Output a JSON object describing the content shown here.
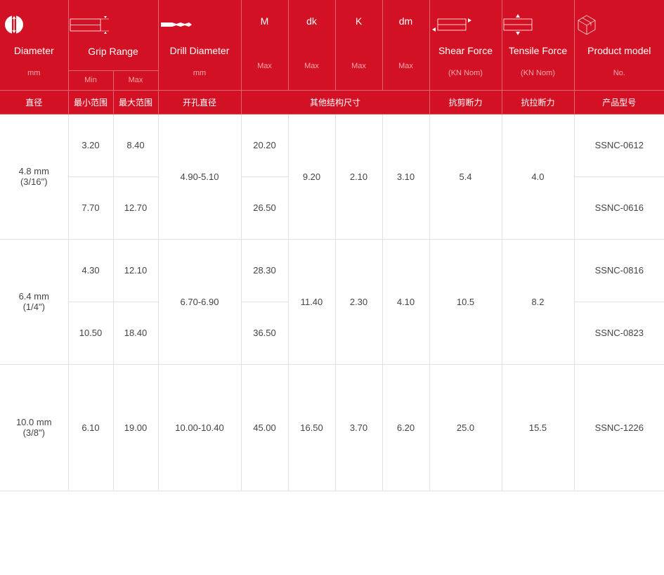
{
  "colors": {
    "header_bg": "#d21224",
    "border": "#e2e2e2"
  },
  "header": {
    "diameter": {
      "title": "Diameter",
      "unit": "mm",
      "cn": "直径",
      "icon": "diameter-icon"
    },
    "grip": {
      "title": "Grip Range",
      "min": "Min",
      "max": "Max",
      "cn_min": "最小范围",
      "cn_max": "最大范围",
      "icon": "grip-range-icon"
    },
    "drill": {
      "title": "Drill Diameter",
      "unit": "mm",
      "cn": "开孔直径",
      "icon": "drill-icon"
    },
    "m": {
      "title": "M",
      "unit": "Max"
    },
    "dk": {
      "title": "dk",
      "unit": "Max"
    },
    "k": {
      "title": "K",
      "unit": "Max"
    },
    "dm": {
      "title": "dm",
      "unit": "Max"
    },
    "other_cn": "其他结构尺寸",
    "shear": {
      "title": "Shear Force",
      "unit": "(KN Nom)",
      "cn": "抗剪断力",
      "icon": "shear-force-icon"
    },
    "tensile": {
      "title": "Tensile Force",
      "unit": "(KN Nom)",
      "cn": "抗拉断力",
      "icon": "tensile-force-icon"
    },
    "model": {
      "title": "Product model",
      "unit": "No.",
      "cn": "产品型号",
      "icon": "box-icon"
    }
  },
  "groups": [
    {
      "diameter": "4.8 mm",
      "inch": "(3/16\")",
      "drill": "4.90-5.10",
      "dk": "9.20",
      "k": "2.10",
      "dm": "3.10",
      "shear": "5.4",
      "tensile": "4.0",
      "rows": [
        {
          "min": "3.20",
          "max": "8.40",
          "m": "20.20",
          "model": "SSNC-0612"
        },
        {
          "min": "7.70",
          "max": "12.70",
          "m": "26.50",
          "model": "SSNC-0616"
        }
      ]
    },
    {
      "diameter": "6.4 mm",
      "inch": "(1/4\")",
      "drill": "6.70-6.90",
      "dk": "11.40",
      "k": "2.30",
      "dm": "4.10",
      "shear": "10.5",
      "tensile": "8.2",
      "rows": [
        {
          "min": "4.30",
          "max": "12.10",
          "m": "28.30",
          "model": "SSNC-0816"
        },
        {
          "min": "10.50",
          "max": "18.40",
          "m": "36.50",
          "model": "SSNC-0823"
        }
      ]
    },
    {
      "diameter": "10.0 mm",
      "inch": "(3/8\")",
      "drill": "10.00-10.40",
      "dk": "16.50",
      "k": "3.70",
      "dm": "6.20",
      "shear": "25.0",
      "tensile": "15.5",
      "rows": [
        {
          "min": "6.10",
          "max": "19.00",
          "m": "45.00",
          "model": "SSNC-1226"
        }
      ]
    }
  ]
}
